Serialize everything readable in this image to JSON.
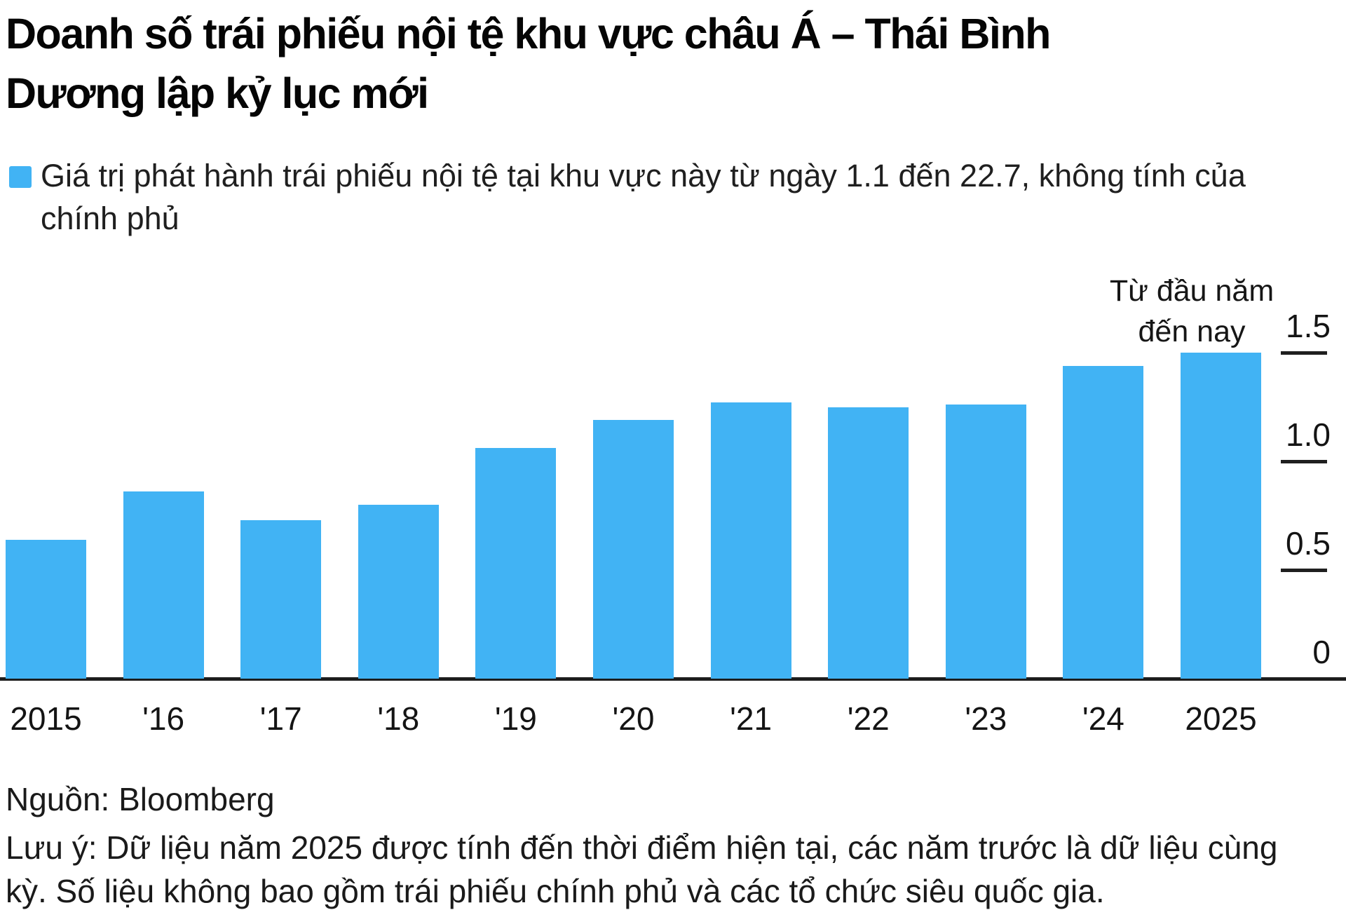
{
  "title": {
    "line1": "Doanh số trái phiếu nội tệ khu vực châu Á – Thái Bình",
    "line2": "Dương lập kỷ lục mới"
  },
  "legend": {
    "marker_color": "#41b3f4",
    "line1": "Giá trị phát hành trái phiếu nội tệ tại khu vực này từ ngày 1.1 đến 22.7, không tính của",
    "line2": "chính phủ"
  },
  "annotation": {
    "line1": "Từ đầu năm",
    "line2": "đến nay"
  },
  "footer": {
    "source": "Nguồn: Bloomberg",
    "note_line1": "Lưu ý: Dữ liệu năm 2025 được tính đến thời điểm hiện tại, các năm trước là dữ liệu cùng",
    "note_line2": "kỳ. Số liệu không bao gồm trái phiếu chính phủ và các tổ chức siêu quốc gia."
  },
  "colors": {
    "bar_blue": "#41b3f4",
    "axis_black": "#1d1d1d",
    "text_black": "#050505"
  },
  "chart_data": {
    "type": "bar",
    "title": "Doanh số trái phiếu nội tệ khu vực châu Á – Thái Bình Dương lập kỷ lục mới",
    "subtitle": "Giá trị phát hành trái phiếu nội tệ tại khu vực này từ ngày 1.1 đến 22.7, không tính của chính phủ",
    "annotation": "Từ đầu năm đến nay",
    "source": "Nguồn: Bloomberg",
    "note": "Lưu ý: Dữ liệu năm 2025 được tính đến thời điểm hiện tại, các năm trước là dữ liệu cùng kỳ. Số liệu không bao gồm trái phiếu chính phủ và các tổ chức siêu quốc gia.",
    "categories": [
      "2015",
      "'16",
      "'17",
      "'18",
      "'19",
      "'20",
      "'21",
      "'22",
      "'23",
      "'24",
      "2025"
    ],
    "values": [
      0.64,
      0.86,
      0.73,
      0.8,
      1.06,
      1.19,
      1.27,
      1.25,
      1.26,
      1.44,
      1.5
    ],
    "xlabel": "",
    "ylabel": "",
    "ylim": [
      0,
      1.5
    ],
    "yticks": [
      {
        "value": 1.5,
        "label": "1.5"
      },
      {
        "value": 1.0,
        "label": "1.0"
      },
      {
        "value": 0.5,
        "label": "0.5"
      },
      {
        "value": 0.0,
        "label": "0"
      }
    ],
    "bar_color": "#41b3f4",
    "grid": false,
    "legend_position": "top-left",
    "axis_side": "right"
  }
}
